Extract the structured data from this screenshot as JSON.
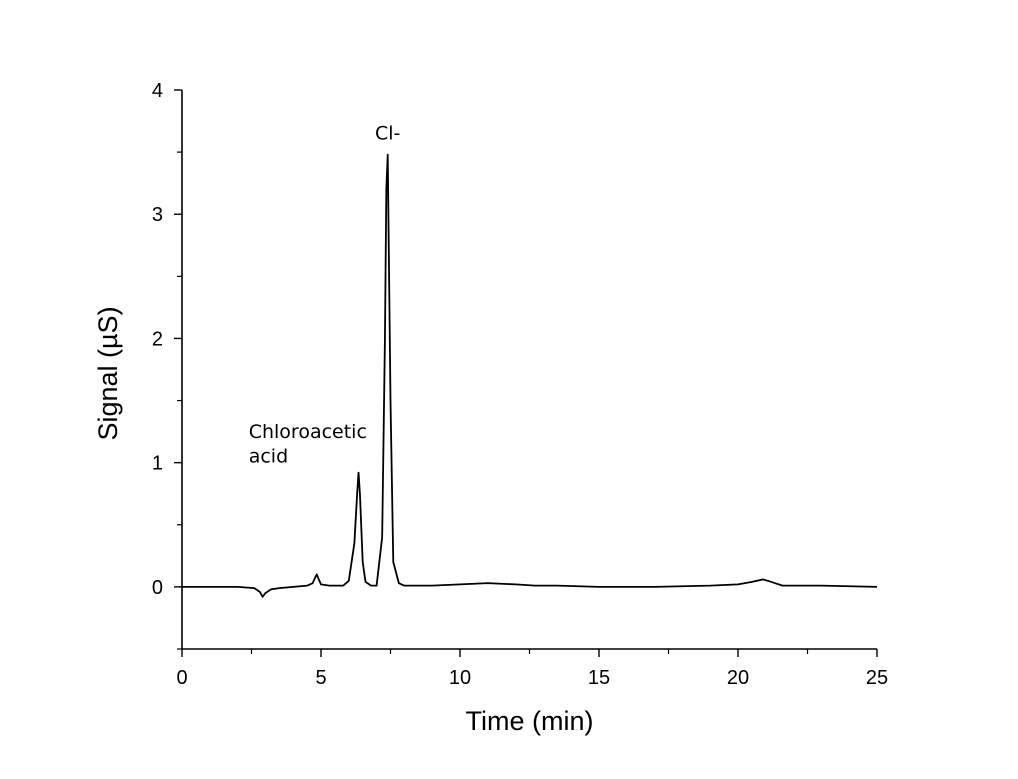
{
  "chart_data": {
    "type": "line",
    "title": "",
    "xlabel": "Time (min)",
    "ylabel": "Signal (µS)",
    "xlim": [
      0,
      25
    ],
    "ylim": [
      -0.5,
      4
    ],
    "xticks": [
      0,
      5,
      10,
      15,
      20,
      25
    ],
    "yticks": [
      0,
      1,
      2,
      3,
      4
    ],
    "grid": false,
    "series": [
      {
        "color": "#000000",
        "x": [
          0,
          1,
          2,
          2.6,
          2.8,
          2.9,
          3.0,
          3.2,
          3.5,
          4.0,
          4.5,
          4.7,
          4.8,
          4.85,
          4.9,
          5.0,
          5.3,
          5.8,
          6.0,
          6.2,
          6.3,
          6.35,
          6.4,
          6.5,
          6.6,
          6.8,
          7.0,
          7.2,
          7.3,
          7.35,
          7.4,
          7.5,
          7.6,
          7.8,
          8.0,
          9.0,
          10.0,
          11.0,
          12.0,
          12.7,
          13.5,
          15.0,
          17.0,
          19.0,
          20.0,
          20.5,
          20.9,
          21.2,
          21.6,
          22.0,
          23.0,
          25.0
        ],
        "y": [
          0,
          0,
          0,
          -0.01,
          -0.04,
          -0.08,
          -0.05,
          -0.02,
          -0.01,
          0,
          0.01,
          0.03,
          0.08,
          0.1,
          0.07,
          0.02,
          0.01,
          0.01,
          0.05,
          0.35,
          0.75,
          0.92,
          0.75,
          0.2,
          0.04,
          0.01,
          0.01,
          0.4,
          2.0,
          3.2,
          3.48,
          1.5,
          0.2,
          0.03,
          0.01,
          0.01,
          0.02,
          0.03,
          0.02,
          0.01,
          0.01,
          0,
          0,
          0.01,
          0.02,
          0.04,
          0.06,
          0.04,
          0.01,
          0.01,
          0.01,
          0
        ]
      }
    ],
    "annotations": [
      {
        "text": "Cl-",
        "x": 7.4,
        "y": 3.6
      },
      {
        "text": "Chloroacetic",
        "x": 2.4,
        "y": 1.2
      },
      {
        "text": "acid",
        "x": 2.4,
        "y": 1.0
      }
    ]
  }
}
